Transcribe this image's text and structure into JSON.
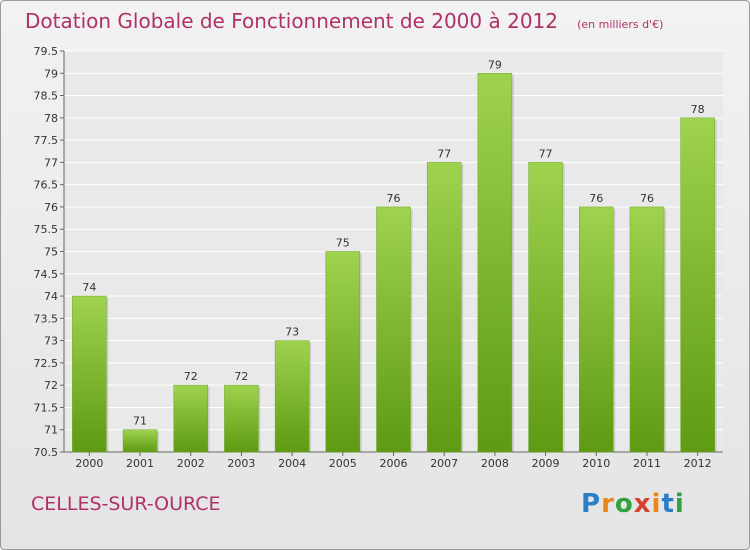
{
  "header": {
    "title": "Dotation Globale de Fonctionnement de 2000 à 2012",
    "subtitle": "(en milliers d'€)"
  },
  "footer": {
    "commune": "CELLES-SUR-OURCE",
    "logo_text": "Proxiti"
  },
  "colors": {
    "bar_top": "#9fd24f",
    "bar_bottom": "#5e9a12",
    "title": "#b0306a",
    "grid": "#ffffff"
  },
  "chart_data": {
    "type": "bar",
    "title": "Dotation Globale de Fonctionnement de 2000 à 2012",
    "subtitle": "(en milliers d'€)",
    "categories": [
      "2000",
      "2001",
      "2002",
      "2003",
      "2004",
      "2005",
      "2006",
      "2007",
      "2008",
      "2009",
      "2010",
      "2011",
      "2012"
    ],
    "values": [
      74,
      71,
      72,
      72,
      73,
      75,
      76,
      77,
      79,
      77,
      76,
      76,
      78
    ],
    "data_labels": [
      "74",
      "71",
      "72",
      "72",
      "73",
      "75",
      "76",
      "77",
      "79",
      "77",
      "76",
      "76",
      "78"
    ],
    "ylim": [
      70.5,
      79.5
    ],
    "yticks": [
      "70.5",
      "71",
      "71.5",
      "72",
      "72.5",
      "73",
      "73.5",
      "74",
      "74.5",
      "75",
      "75.5",
      "76",
      "76.5",
      "77",
      "77.5",
      "78",
      "78.5",
      "79",
      "79.5"
    ],
    "grid": true,
    "legend": "none"
  }
}
